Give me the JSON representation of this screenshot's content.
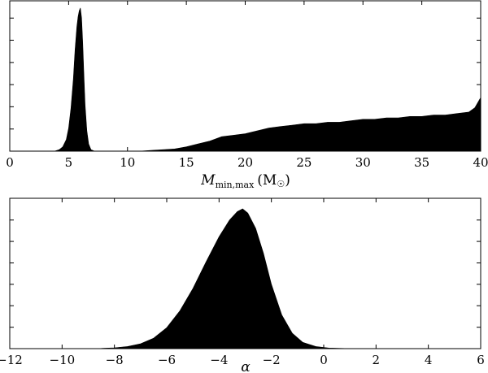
{
  "chart_data": [
    {
      "type": "area",
      "xlabel": "M_min,max (M☉)",
      "xlabel_main": "M",
      "xlabel_sub": "min,max",
      "xlabel_rest": "(M",
      "xlabel_unit": "☉",
      "xlabel_close": ")",
      "xlim": [
        0,
        40
      ],
      "ylim": [
        0,
        1
      ],
      "y_tick_labels_visible": false,
      "xticks": [
        {
          "value": 0,
          "label": "0"
        },
        {
          "value": 5,
          "label": "5"
        },
        {
          "value": 10,
          "label": "10"
        },
        {
          "value": 15,
          "label": "15"
        },
        {
          "value": 20,
          "label": "20"
        },
        {
          "value": 25,
          "label": "25"
        },
        {
          "value": 30,
          "label": "30"
        },
        {
          "value": 35,
          "label": "35"
        },
        {
          "value": 40,
          "label": "40"
        }
      ],
      "yticks": [
        0,
        0.153,
        0.307,
        0.46,
        0.613,
        0.767,
        0.92
      ],
      "series": [
        {
          "x": [
            3.8,
            4.2,
            4.5,
            4.8,
            5.0,
            5.2,
            5.4,
            5.55,
            5.7,
            5.8,
            5.9,
            6.0,
            6.1,
            6.2,
            6.3,
            6.4,
            6.55,
            6.7,
            6.9,
            7.2
          ],
          "y": [
            0.0,
            0.01,
            0.03,
            0.08,
            0.16,
            0.3,
            0.5,
            0.7,
            0.86,
            0.93,
            0.97,
            0.99,
            0.92,
            0.75,
            0.52,
            0.32,
            0.14,
            0.05,
            0.01,
            0.0
          ]
        },
        {
          "x": [
            11.0,
            12,
            13,
            14,
            15,
            16,
            17,
            18,
            19,
            20,
            21,
            22,
            23,
            24,
            25,
            26,
            27,
            28,
            29,
            30,
            31,
            32,
            33,
            34,
            35,
            36,
            37,
            38,
            39,
            39.5,
            40
          ],
          "y": [
            0.0,
            0.005,
            0.01,
            0.015,
            0.03,
            0.05,
            0.07,
            0.1,
            0.11,
            0.12,
            0.14,
            0.16,
            0.17,
            0.18,
            0.19,
            0.19,
            0.2,
            0.2,
            0.21,
            0.22,
            0.22,
            0.23,
            0.23,
            0.24,
            0.24,
            0.25,
            0.25,
            0.26,
            0.27,
            0.3,
            0.37
          ]
        }
      ]
    },
    {
      "type": "area",
      "xlabel": "α",
      "xlim": [
        -12,
        6
      ],
      "ylim": [
        0,
        1
      ],
      "y_tick_labels_visible": false,
      "xticks": [
        {
          "value": -12,
          "label": "−12"
        },
        {
          "value": -10,
          "label": "−10"
        },
        {
          "value": -8,
          "label": "−8"
        },
        {
          "value": -6,
          "label": "−6"
        },
        {
          "value": -4,
          "label": "−4"
        },
        {
          "value": -2,
          "label": "−2"
        },
        {
          "value": 0,
          "label": "0"
        },
        {
          "value": 2,
          "label": "2"
        },
        {
          "value": 4,
          "label": "4"
        },
        {
          "value": 6,
          "label": "6"
        }
      ],
      "yticks": [
        0,
        0.153,
        0.307,
        0.46,
        0.613,
        0.767,
        0.92
      ],
      "series": [
        {
          "x": [
            -9.0,
            -8.5,
            -8.0,
            -7.5,
            -7.0,
            -6.5,
            -6.0,
            -5.5,
            -5.0,
            -4.5,
            -4.0,
            -3.6,
            -3.3,
            -3.1,
            -2.9,
            -2.6,
            -2.3,
            -2.0,
            -1.6,
            -1.2,
            -0.8,
            -0.3,
            0.2,
            0.8,
            1.5
          ],
          "y": [
            0.0,
            0.002,
            0.006,
            0.015,
            0.035,
            0.075,
            0.15,
            0.27,
            0.43,
            0.62,
            0.8,
            0.92,
            0.98,
            1.0,
            0.97,
            0.86,
            0.68,
            0.46,
            0.24,
            0.11,
            0.045,
            0.015,
            0.004,
            0.001,
            0.0
          ]
        }
      ]
    }
  ]
}
